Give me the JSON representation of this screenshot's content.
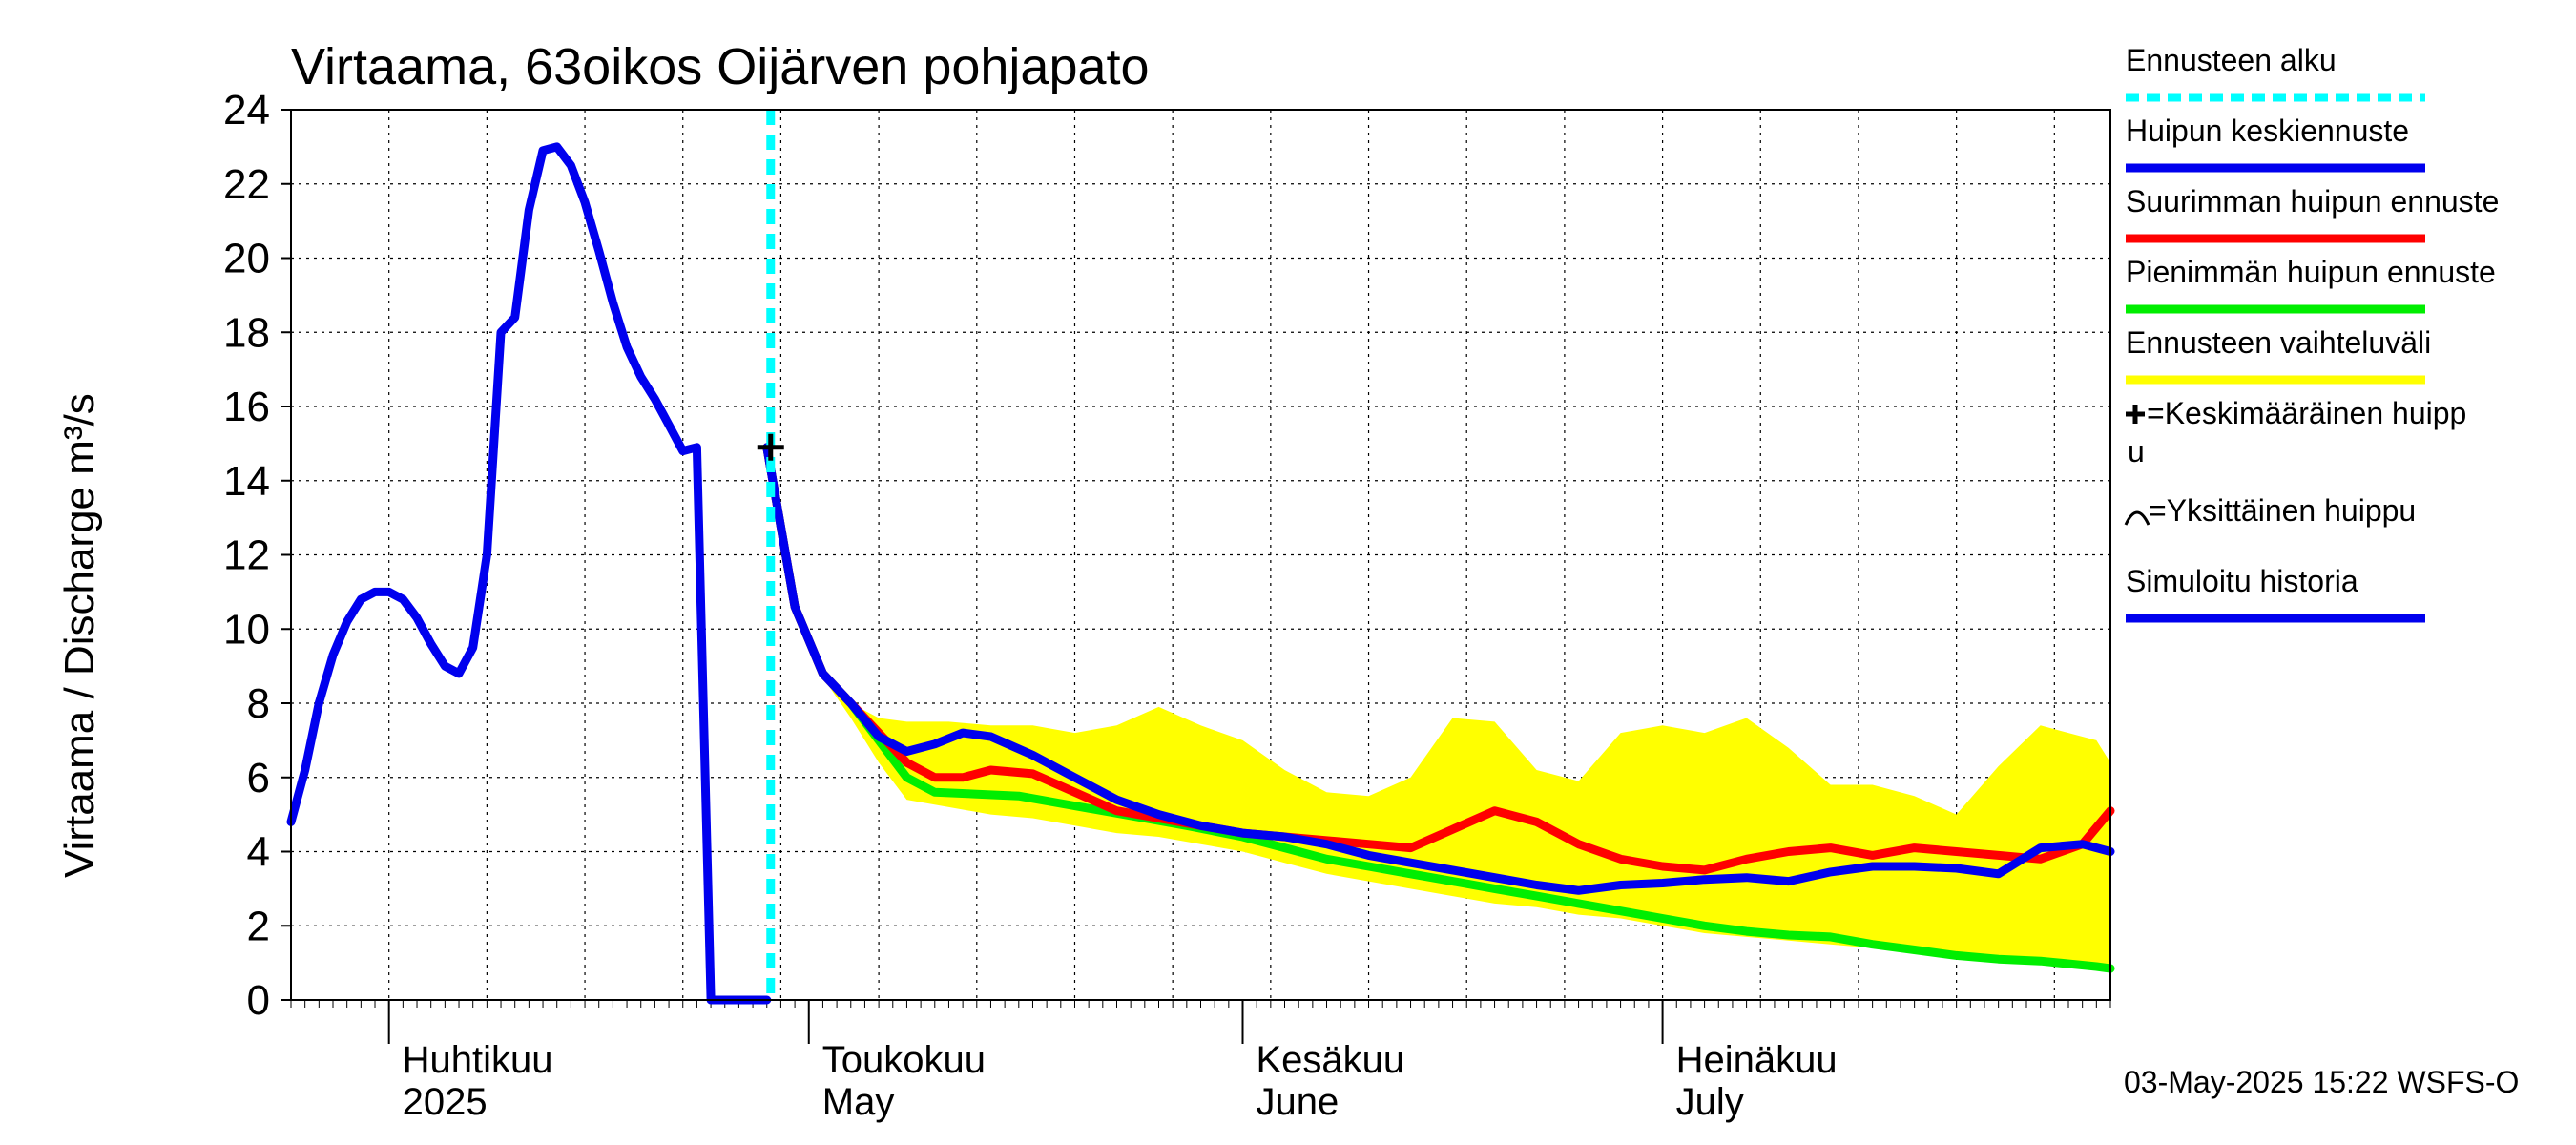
{
  "chart_data": {
    "type": "line",
    "title": "Virtaama, 63oikos Oijärven pohjapato",
    "ylabel": "Virtaama / Discharge   m³/s",
    "ylim": [
      0,
      24
    ],
    "yticks": [
      0,
      2,
      4,
      6,
      8,
      10,
      12,
      14,
      16,
      18,
      20,
      22,
      24
    ],
    "xlim": [
      "2025-03-25",
      "2025-08-02"
    ],
    "grid": true,
    "legend_position": "right",
    "month_labels": [
      {
        "fi": "Huhtikuu",
        "en": "2025",
        "date": "2025-04-01"
      },
      {
        "fi": "Toukokuu",
        "en": "May",
        "date": "2025-05-01"
      },
      {
        "fi": "Kesäkuu",
        "en": "June",
        "date": "2025-06-01"
      },
      {
        "fi": "Heinäkuu",
        "en": "July",
        "date": "2025-07-01"
      }
    ],
    "forecast_start": "2025-04-28",
    "mean_peak": {
      "date": "2025-04-28",
      "value": 14.9
    },
    "series": [
      {
        "name": "Simuloitu historia",
        "color": "#0000ee",
        "x": [
          "2025-03-25",
          "2025-03-26",
          "2025-03-27",
          "2025-03-28",
          "2025-03-29",
          "2025-03-30",
          "2025-03-31",
          "2025-04-01",
          "2025-04-02",
          "2025-04-03",
          "2025-04-04",
          "2025-04-05",
          "2025-04-06",
          "2025-04-07",
          "2025-04-08",
          "2025-04-09",
          "2025-04-10",
          "2025-04-11",
          "2025-04-12",
          "2025-04-13",
          "2025-04-14",
          "2025-04-15",
          "2025-04-16",
          "2025-04-17",
          "2025-04-18",
          "2025-04-19",
          "2025-04-20",
          "2025-04-21",
          "2025-04-22",
          "2025-04-23",
          "2025-04-24",
          "2025-04-25",
          "2025-04-26",
          "2025-04-27",
          "2025-04-28"
        ],
        "y": [
          4.8,
          6.2,
          8.0,
          9.3,
          10.2,
          10.8,
          11.0,
          11.0,
          10.8,
          10.3,
          9.6,
          9.0,
          8.8,
          9.5,
          12.0,
          18.0,
          18.4,
          21.3,
          22.9,
          23.0,
          22.5,
          21.5,
          20.2,
          18.8,
          17.6,
          16.8,
          16.2,
          15.5,
          14.8,
          14.9,
          0,
          0,
          0,
          0,
          0
        ]
      },
      {
        "name": "Ennusteen vaihteluväli",
        "color": "#ffff00",
        "x": [
          "2025-04-28",
          "2025-04-30",
          "2025-05-02",
          "2025-05-04",
          "2025-05-06",
          "2025-05-08",
          "2025-05-11",
          "2025-05-14",
          "2025-05-17",
          "2025-05-20",
          "2025-05-23",
          "2025-05-26",
          "2025-05-29",
          "2025-06-01",
          "2025-06-04",
          "2025-06-07",
          "2025-06-10",
          "2025-06-13",
          "2025-06-16",
          "2025-06-19",
          "2025-06-22",
          "2025-06-25",
          "2025-06-28",
          "2025-07-01",
          "2025-07-04",
          "2025-07-07",
          "2025-07-10",
          "2025-07-13",
          "2025-07-16",
          "2025-07-19",
          "2025-07-22",
          "2025-07-25",
          "2025-07-28",
          "2025-08-01",
          "2025-08-02"
        ],
        "upper": [
          14.9,
          10.6,
          8.8,
          8.0,
          7.6,
          7.5,
          7.5,
          7.4,
          7.4,
          7.2,
          7.4,
          7.9,
          7.4,
          7.0,
          6.2,
          5.6,
          5.5,
          6.0,
          7.6,
          7.5,
          6.2,
          5.9,
          7.2,
          7.4,
          7.2,
          7.6,
          6.8,
          5.8,
          5.8,
          5.5,
          5.0,
          6.3,
          7.4,
          7.0,
          6.4
        ],
        "lower": [
          14.9,
          10.6,
          8.7,
          7.6,
          6.4,
          5.4,
          5.2,
          5.0,
          4.9,
          4.7,
          4.5,
          4.4,
          4.2,
          4.0,
          3.7,
          3.4,
          3.2,
          3.0,
          2.8,
          2.6,
          2.5,
          2.3,
          2.2,
          2.0,
          1.8,
          1.7,
          1.6,
          1.5,
          1.4,
          1.3,
          1.2,
          1.1,
          1.0,
          0.9,
          0.9
        ]
      },
      {
        "name": "Suurimman huipun ennuste",
        "color": "#ff0000",
        "x": [
          "2025-04-28",
          "2025-04-30",
          "2025-05-02",
          "2025-05-04",
          "2025-05-06",
          "2025-05-08",
          "2025-05-10",
          "2025-05-12",
          "2025-05-14",
          "2025-05-17",
          "2025-05-20",
          "2025-05-23",
          "2025-05-26",
          "2025-05-29",
          "2025-06-01",
          "2025-06-04",
          "2025-06-07",
          "2025-06-10",
          "2025-06-13",
          "2025-06-16",
          "2025-06-19",
          "2025-06-22",
          "2025-06-25",
          "2025-06-28",
          "2025-07-01",
          "2025-07-04",
          "2025-07-07",
          "2025-07-10",
          "2025-07-13",
          "2025-07-16",
          "2025-07-19",
          "2025-07-22",
          "2025-07-25",
          "2025-07-28",
          "2025-07-31",
          "2025-08-02"
        ],
        "y": [
          14.9,
          10.6,
          8.8,
          8.0,
          7.2,
          6.4,
          6.0,
          6.0,
          6.2,
          6.1,
          5.6,
          5.1,
          4.9,
          4.7,
          4.5,
          4.4,
          4.3,
          4.2,
          4.1,
          4.6,
          5.1,
          4.8,
          4.2,
          3.8,
          3.6,
          3.5,
          3.8,
          4.0,
          4.1,
          3.9,
          4.1,
          4.0,
          3.9,
          3.8,
          4.2,
          5.1
        ]
      },
      {
        "name": "Pienimmän huipun ennuste",
        "color": "#00ee00",
        "x": [
          "2025-04-28",
          "2025-04-30",
          "2025-05-02",
          "2025-05-04",
          "2025-05-06",
          "2025-05-08",
          "2025-05-10",
          "2025-05-13",
          "2025-05-16",
          "2025-05-19",
          "2025-05-22",
          "2025-05-25",
          "2025-05-28",
          "2025-06-01",
          "2025-06-04",
          "2025-06-07",
          "2025-06-10",
          "2025-06-13",
          "2025-06-16",
          "2025-06-19",
          "2025-06-22",
          "2025-06-25",
          "2025-06-28",
          "2025-07-01",
          "2025-07-04",
          "2025-07-07",
          "2025-07-10",
          "2025-07-13",
          "2025-07-16",
          "2025-07-19",
          "2025-07-22",
          "2025-07-25",
          "2025-07-28",
          "2025-08-01",
          "2025-08-02"
        ],
        "y": [
          14.9,
          10.6,
          8.8,
          8.0,
          7.0,
          6.0,
          5.6,
          5.55,
          5.5,
          5.3,
          5.1,
          4.9,
          4.7,
          4.4,
          4.1,
          3.8,
          3.6,
          3.4,
          3.2,
          3.0,
          2.8,
          2.6,
          2.4,
          2.2,
          2.0,
          1.85,
          1.75,
          1.7,
          1.5,
          1.35,
          1.2,
          1.1,
          1.05,
          0.9,
          0.85
        ]
      },
      {
        "name": "Huipun keskiennuste",
        "color": "#0000ee",
        "x": [
          "2025-04-28",
          "2025-04-30",
          "2025-05-02",
          "2025-05-04",
          "2025-05-06",
          "2025-05-08",
          "2025-05-10",
          "2025-05-12",
          "2025-05-14",
          "2025-05-17",
          "2025-05-20",
          "2025-05-23",
          "2025-05-26",
          "2025-05-29",
          "2025-06-01",
          "2025-06-04",
          "2025-06-07",
          "2025-06-10",
          "2025-06-13",
          "2025-06-16",
          "2025-06-19",
          "2025-06-22",
          "2025-06-25",
          "2025-06-28",
          "2025-07-01",
          "2025-07-04",
          "2025-07-07",
          "2025-07-10",
          "2025-07-13",
          "2025-07-16",
          "2025-07-19",
          "2025-07-22",
          "2025-07-25",
          "2025-07-28",
          "2025-07-31",
          "2025-08-02"
        ],
        "y": [
          14.9,
          10.6,
          8.8,
          8.0,
          7.1,
          6.7,
          6.9,
          7.2,
          7.1,
          6.6,
          6.0,
          5.4,
          5.0,
          4.7,
          4.5,
          4.4,
          4.2,
          3.9,
          3.7,
          3.5,
          3.3,
          3.1,
          2.95,
          3.1,
          3.15,
          3.25,
          3.3,
          3.2,
          3.45,
          3.6,
          3.6,
          3.55,
          3.4,
          4.1,
          4.2,
          4.0
        ]
      }
    ]
  },
  "legend": {
    "items": [
      {
        "label": "Ennusteen alku",
        "color": "#00ffff",
        "style": "dashed"
      },
      {
        "label": "Huipun keskiennuste",
        "color": "#0000ee",
        "style": "solid"
      },
      {
        "label": "Suurimman huipun ennuste",
        "color": "#ff0000",
        "style": "solid"
      },
      {
        "label": "Pienimmän huipun ennuste",
        "color": "#00ee00",
        "style": "solid"
      },
      {
        "label": "Ennusteen vaihteluväli",
        "color": "#ffff00",
        "style": "solid"
      },
      {
        "label": "=Keskimääräinen huipp",
        "label2": "u",
        "style": "plus"
      },
      {
        "label": "=Yksittäinen huippu",
        "style": "arc"
      },
      {
        "label": "Simuloitu historia",
        "color": "#0000ee",
        "style": "solid"
      }
    ]
  },
  "footer": {
    "timestamp": "03-May-2025 15:22 WSFS-O"
  }
}
